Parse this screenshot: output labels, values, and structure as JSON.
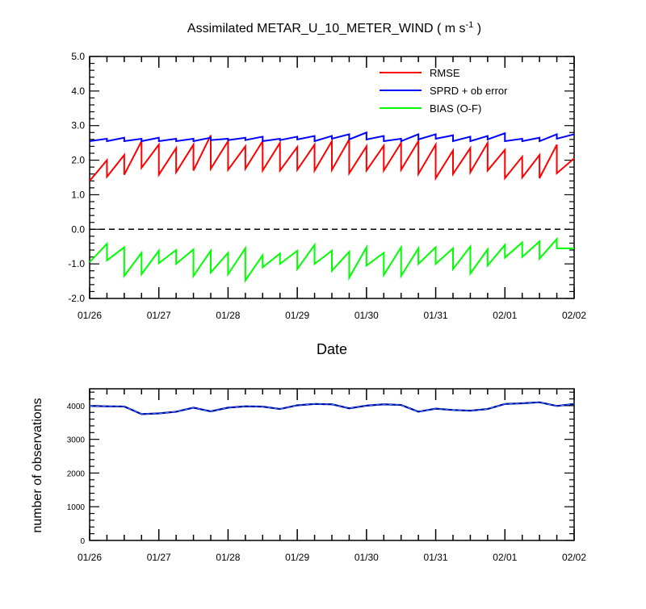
{
  "chart_data": [
    {
      "type": "line",
      "title": "Assimilated METAR_U_10_METER_WIND ( m s",
      "title_sup": "-1",
      "title_close": " )",
      "xlabel": "Date",
      "ylabel": "",
      "ylim": [
        -2.0,
        5.0
      ],
      "yticks": [
        "5.0",
        "4.0",
        "3.0",
        "2.0",
        "1.0",
        "0.0",
        "-1.0",
        "-2.0"
      ],
      "ytick_values": [
        5,
        4,
        3,
        2,
        1,
        0,
        -1,
        -2
      ],
      "xlim": [
        0,
        7
      ],
      "xticks": [
        "01/26",
        "01/27",
        "01/28",
        "01/29",
        "01/30",
        "01/31",
        "02/01",
        "02/02"
      ],
      "xtick_values": [
        0,
        1,
        2,
        3,
        4,
        5,
        6,
        7
      ],
      "zero_line": 0,
      "legend_position": "top-right",
      "series": [
        {
          "name": "RMSE",
          "color": "#ff0000",
          "style": "sawtooth",
          "points": [
            {
              "x": 0.0,
              "lo": 1.4,
              "hi": 2.0
            },
            {
              "x": 0.25,
              "lo": 1.52,
              "hi": 2.15
            },
            {
              "x": 0.5,
              "lo": 1.58,
              "hi": 2.55
            },
            {
              "x": 0.75,
              "lo": 1.78,
              "hi": 2.45
            },
            {
              "x": 1.0,
              "lo": 1.58,
              "hi": 2.35
            },
            {
              "x": 1.25,
              "lo": 1.65,
              "hi": 2.45
            },
            {
              "x": 1.5,
              "lo": 1.7,
              "hi": 2.72
            },
            {
              "x": 1.75,
              "lo": 1.75,
              "hi": 2.55
            },
            {
              "x": 2.0,
              "lo": 1.72,
              "hi": 2.4
            },
            {
              "x": 2.25,
              "lo": 1.75,
              "hi": 2.55
            },
            {
              "x": 2.5,
              "lo": 1.7,
              "hi": 2.5
            },
            {
              "x": 2.75,
              "lo": 1.7,
              "hi": 2.38
            },
            {
              "x": 3.0,
              "lo": 1.72,
              "hi": 2.45
            },
            {
              "x": 3.25,
              "lo": 1.7,
              "hi": 2.55
            },
            {
              "x": 3.5,
              "lo": 1.72,
              "hi": 2.6
            },
            {
              "x": 3.75,
              "lo": 1.62,
              "hi": 2.4
            },
            {
              "x": 4.0,
              "lo": 1.7,
              "hi": 2.42
            },
            {
              "x": 4.25,
              "lo": 1.7,
              "hi": 2.5
            },
            {
              "x": 4.5,
              "lo": 1.72,
              "hi": 2.55
            },
            {
              "x": 4.75,
              "lo": 1.6,
              "hi": 2.45
            },
            {
              "x": 5.0,
              "lo": 1.48,
              "hi": 2.28
            },
            {
              "x": 5.25,
              "lo": 1.6,
              "hi": 2.35
            },
            {
              "x": 5.5,
              "lo": 1.65,
              "hi": 2.5
            },
            {
              "x": 5.75,
              "lo": 1.7,
              "hi": 2.3
            },
            {
              "x": 6.0,
              "lo": 1.48,
              "hi": 2.1
            },
            {
              "x": 6.25,
              "lo": 1.5,
              "hi": 2.15
            },
            {
              "x": 6.5,
              "lo": 1.48,
              "hi": 2.45
            },
            {
              "x": 6.75,
              "lo": 1.62,
              "hi": 2.05
            }
          ]
        },
        {
          "name": "SPRD + ob error",
          "color": "#0000ff",
          "style": "sawtooth",
          "points": [
            {
              "x": 0.0,
              "lo": 2.55,
              "hi": 2.62
            },
            {
              "x": 0.25,
              "lo": 2.55,
              "hi": 2.65
            },
            {
              "x": 0.5,
              "lo": 2.55,
              "hi": 2.62
            },
            {
              "x": 0.75,
              "lo": 2.55,
              "hi": 2.65
            },
            {
              "x": 1.0,
              "lo": 2.55,
              "hi": 2.62
            },
            {
              "x": 1.25,
              "lo": 2.55,
              "hi": 2.62
            },
            {
              "x": 1.5,
              "lo": 2.55,
              "hi": 2.65
            },
            {
              "x": 1.75,
              "lo": 2.58,
              "hi": 2.62
            },
            {
              "x": 2.0,
              "lo": 2.58,
              "hi": 2.65
            },
            {
              "x": 2.25,
              "lo": 2.58,
              "hi": 2.68
            },
            {
              "x": 2.5,
              "lo": 2.55,
              "hi": 2.62
            },
            {
              "x": 2.75,
              "lo": 2.58,
              "hi": 2.68
            },
            {
              "x": 3.0,
              "lo": 2.6,
              "hi": 2.7
            },
            {
              "x": 3.25,
              "lo": 2.55,
              "hi": 2.7
            },
            {
              "x": 3.5,
              "lo": 2.62,
              "hi": 2.75
            },
            {
              "x": 3.75,
              "lo": 2.6,
              "hi": 2.8
            },
            {
              "x": 4.0,
              "lo": 2.6,
              "hi": 2.7
            },
            {
              "x": 4.25,
              "lo": 2.55,
              "hi": 2.62
            },
            {
              "x": 4.5,
              "lo": 2.55,
              "hi": 2.75
            },
            {
              "x": 4.75,
              "lo": 2.6,
              "hi": 2.75
            },
            {
              "x": 5.0,
              "lo": 2.62,
              "hi": 2.72
            },
            {
              "x": 5.25,
              "lo": 2.55,
              "hi": 2.68
            },
            {
              "x": 5.5,
              "lo": 2.55,
              "hi": 2.7
            },
            {
              "x": 5.75,
              "lo": 2.6,
              "hi": 2.78
            },
            {
              "x": 6.0,
              "lo": 2.55,
              "hi": 2.62
            },
            {
              "x": 6.25,
              "lo": 2.55,
              "hi": 2.65
            },
            {
              "x": 6.5,
              "lo": 2.55,
              "hi": 2.75
            },
            {
              "x": 6.75,
              "lo": 2.62,
              "hi": 2.75
            }
          ]
        },
        {
          "name": "BIAS (O-F)",
          "color": "#00ff00",
          "style": "sawtooth",
          "points": [
            {
              "x": 0.0,
              "lo": -0.95,
              "hi": -0.42
            },
            {
              "x": 0.25,
              "lo": -0.9,
              "hi": -0.52
            },
            {
              "x": 0.5,
              "lo": -1.35,
              "hi": -0.68
            },
            {
              "x": 0.75,
              "lo": -1.3,
              "hi": -0.62
            },
            {
              "x": 1.0,
              "lo": -0.98,
              "hi": -0.6
            },
            {
              "x": 1.25,
              "lo": -1.0,
              "hi": -0.58
            },
            {
              "x": 1.5,
              "lo": -1.35,
              "hi": -0.62
            },
            {
              "x": 1.75,
              "lo": -1.25,
              "hi": -0.68
            },
            {
              "x": 2.0,
              "lo": -1.3,
              "hi": -0.55
            },
            {
              "x": 2.25,
              "lo": -1.48,
              "hi": -0.75
            },
            {
              "x": 2.5,
              "lo": -1.1,
              "hi": -0.7
            },
            {
              "x": 2.75,
              "lo": -1.0,
              "hi": -0.62
            },
            {
              "x": 3.0,
              "lo": -1.15,
              "hi": -0.45
            },
            {
              "x": 3.25,
              "lo": -1.0,
              "hi": -0.62
            },
            {
              "x": 3.5,
              "lo": -1.2,
              "hi": -0.65
            },
            {
              "x": 3.75,
              "lo": -1.4,
              "hi": -0.52
            },
            {
              "x": 4.0,
              "lo": -1.05,
              "hi": -0.68
            },
            {
              "x": 4.25,
              "lo": -1.32,
              "hi": -0.52
            },
            {
              "x": 4.5,
              "lo": -1.35,
              "hi": -0.55
            },
            {
              "x": 4.75,
              "lo": -1.0,
              "hi": -0.52
            },
            {
              "x": 5.0,
              "lo": -1.0,
              "hi": -0.55
            },
            {
              "x": 5.25,
              "lo": -1.15,
              "hi": -0.5
            },
            {
              "x": 5.5,
              "lo": -1.28,
              "hi": -0.58
            },
            {
              "x": 5.75,
              "lo": -1.05,
              "hi": -0.45
            },
            {
              "x": 6.0,
              "lo": -0.82,
              "hi": -0.38
            },
            {
              "x": 6.25,
              "lo": -0.8,
              "hi": -0.35
            },
            {
              "x": 6.5,
              "lo": -0.85,
              "hi": -0.28
            },
            {
              "x": 6.75,
              "lo": -0.55,
              "hi": -0.55
            }
          ]
        }
      ]
    },
    {
      "type": "line",
      "title": "",
      "xlabel": "",
      "ylabel": "number of observations",
      "ylim": [
        0,
        4500
      ],
      "yticks": [
        "0",
        "1000",
        "2000",
        "3000",
        "4000"
      ],
      "ytick_values": [
        0,
        1000,
        2000,
        3000,
        4000
      ],
      "xlim": [
        0,
        7
      ],
      "xticks": [
        "01/26",
        "01/27",
        "01/28",
        "01/29",
        "01/30",
        "01/31",
        "02/01",
        "02/02"
      ],
      "xtick_values": [
        0,
        1,
        2,
        3,
        4,
        5,
        6,
        7
      ],
      "series": [
        {
          "color": "#0000a0",
          "dash_color": "#1e90ff",
          "x": [
            0.0,
            0.25,
            0.5,
            0.75,
            1.0,
            1.25,
            1.5,
            1.75,
            2.0,
            2.25,
            2.5,
            2.75,
            3.0,
            3.25,
            3.5,
            3.75,
            4.0,
            4.25,
            4.5,
            4.75,
            5.0,
            5.25,
            5.5,
            5.75,
            6.0,
            6.25,
            6.5,
            6.75,
            7.0
          ],
          "y": [
            3990,
            3980,
            3975,
            3750,
            3770,
            3820,
            3940,
            3830,
            3940,
            3980,
            3970,
            3900,
            4010,
            4050,
            4040,
            3920,
            4000,
            4040,
            4020,
            3820,
            3910,
            3870,
            3850,
            3900,
            4050,
            4070,
            4100,
            3990,
            4050
          ]
        }
      ]
    }
  ]
}
